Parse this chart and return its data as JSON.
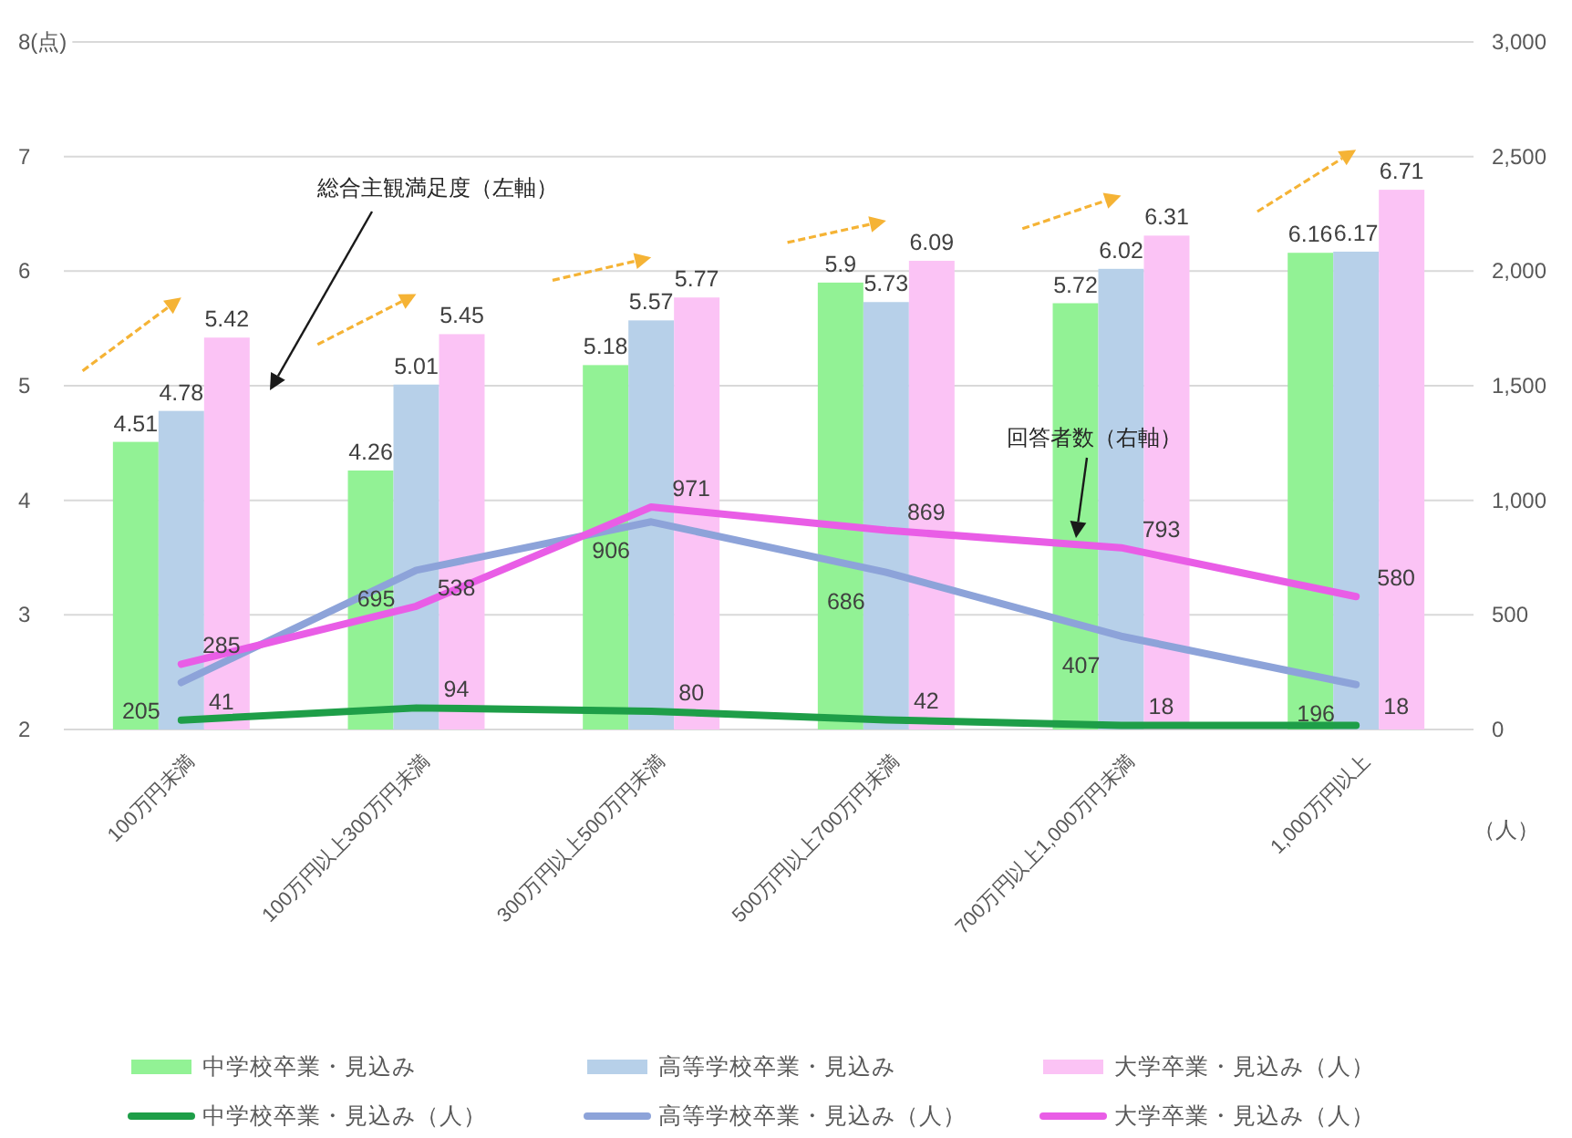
{
  "chart_data": {
    "type": "bar",
    "categories": [
      "100万円未満",
      "100万円以上300万円未満",
      "300万円以上500万円未満",
      "500万円以上700万円未満",
      "700万円以上1,000万円未満",
      "1,000万円以上"
    ],
    "series": [
      {
        "name": "中学校卒業・見込み",
        "color": "#92f295",
        "values": [
          4.51,
          4.26,
          5.18,
          5.9,
          5.72,
          6.16
        ]
      },
      {
        "name": "高等学校卒業・見込み",
        "color": "#b7d0e9",
        "values": [
          4.78,
          5.01,
          5.57,
          5.73,
          6.02,
          6.17
        ]
      },
      {
        "name": "大学卒業・見込み（人）",
        "color": "#fbc3f5",
        "values": [
          5.42,
          5.45,
          5.77,
          6.09,
          6.31,
          6.71
        ]
      },
      {
        "name": "中学校卒業・見込み（人）",
        "type": "line",
        "axis": "y2",
        "color": "#1e9e48",
        "values": [
          41,
          94,
          80,
          42,
          18,
          18
        ]
      },
      {
        "name": "高等学校卒業・見込み（人）",
        "type": "line",
        "axis": "y2",
        "color": "#8da3d9",
        "values": [
          205,
          695,
          906,
          686,
          407,
          196
        ]
      },
      {
        "name": "大学卒業・見込み（人）",
        "type": "line",
        "axis": "y2",
        "color": "#e95de6",
        "values": [
          285,
          538,
          971,
          869,
          793,
          580
        ]
      }
    ],
    "ylim": [
      2,
      8
    ],
    "yticks": [
      2,
      3,
      4,
      5,
      6,
      7,
      {
        "value": 8,
        "label": "8(点)"
      }
    ],
    "y2lim": [
      0,
      3000
    ],
    "y2ticks": [
      0,
      500,
      {
        "value": 1000,
        "label": "1,000"
      },
      {
        "value": 1500,
        "label": "1,500"
      },
      {
        "value": 2000,
        "label": "2,000"
      },
      {
        "value": 2500,
        "label": "2,500"
      },
      {
        "value": 3000,
        "label": "3,000"
      }
    ],
    "y2label": "（人）",
    "grid": "y",
    "legend": "bottom",
    "data_labels": true,
    "annotations": [
      "総合主観満足度（左軸）",
      "回答者数（右軸）"
    ]
  }
}
